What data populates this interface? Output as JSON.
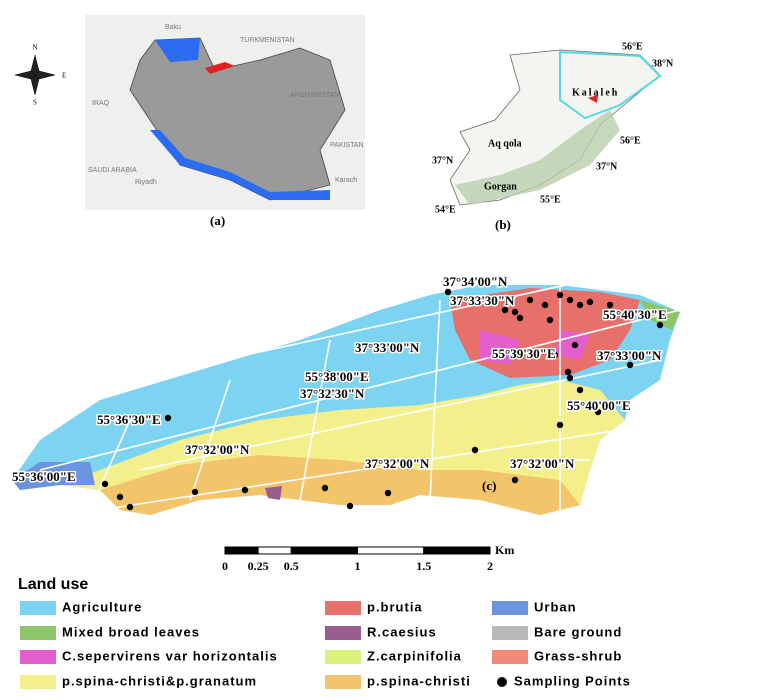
{
  "panel_a": {
    "labels": [
      "Baku",
      "TURKMENISTAN",
      "AFGHANISTAN",
      "IRAQ",
      "SAUDI ARABIA",
      "Riyadh",
      "PAKISTAN",
      "Karach"
    ],
    "caption": "(a)"
  },
  "compass": {
    "n": "N",
    "e": "E",
    "s": "S"
  },
  "panel_b": {
    "labels": [
      "56°E",
      "38°N",
      "Kalaleh",
      "56°E",
      "Aq qola",
      "37°N",
      "37°N",
      "Gorgan",
      "55°E",
      "54°E"
    ],
    "caption": "(b)"
  },
  "panel_c": {
    "labels": [
      "37°34'00\"N",
      "37°33'30\"N",
      "55°40'30\"E",
      "37°33'00\"N",
      "55°39'30\"E",
      "37°33'00\"N",
      "55°38'00\"E",
      "37°32'30\"N",
      "55°40'00\"E",
      "55°36'30\"E",
      "37°32'00\"N",
      "37°32'00\"N",
      "37°32'00\"N",
      "55°36'00\"E"
    ],
    "caption": "(c)"
  },
  "scale_bar": {
    "unit": "Km",
    "ticks": [
      0,
      0.25,
      0.5,
      1,
      1.5,
      2
    ]
  },
  "legend": {
    "title": "Land use",
    "items": [
      {
        "name": "Agriculture",
        "color": "#7dd4f2"
      },
      {
        "name": "p.brutia",
        "color": "#e8706a"
      },
      {
        "name": "Urban",
        "color": "#6a94de"
      },
      {
        "name": "Mixed broad leaves",
        "color": "#8cc668"
      },
      {
        "name": "R.caesius",
        "color": "#9a5e8e"
      },
      {
        "name": "Bare ground",
        "color": "#b9b9b9"
      },
      {
        "name": "C.sepervirens var horizontalis",
        "color": "#e35fcb"
      },
      {
        "name": "Z.carpinifolia",
        "color": "#d9f27c"
      },
      {
        "name": "Grass-shrub",
        "color": "#f08a7a"
      },
      {
        "name": "p.spina-christi&p.granatum",
        "color": "#f3f08c"
      },
      {
        "name": "p.spina-christi",
        "color": "#f4c46a"
      },
      {
        "name": "Sampling Points",
        "color": "#000000"
      }
    ]
  }
}
